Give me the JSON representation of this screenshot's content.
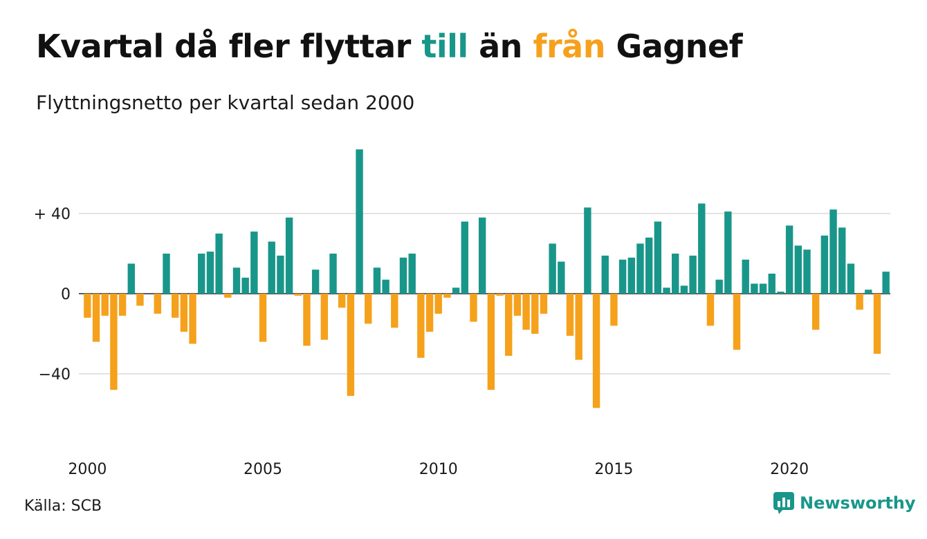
{
  "title": {
    "part1": "Kvartal då fler flyttar",
    "till": "till",
    "mid": "än",
    "fran": "från",
    "end": "Gagnef"
  },
  "subtitle": "Flyttningsnetto per kvartal sedan 2000",
  "source": "Källa: SCB",
  "brand": {
    "name": "Newsworthy",
    "color": "#19968a"
  },
  "colors": {
    "positive": "#19968a",
    "negative": "#f5a11c",
    "grid": "#e3e3e3"
  },
  "chart_data": {
    "type": "bar",
    "title": "Kvartal då fler flyttar till än från Gagnef",
    "subtitle": "Flyttningsnetto per kvartal sedan 2000",
    "ylabel": "",
    "xlabel": "",
    "ylim": [
      -66,
      72
    ],
    "y_ticks": [
      {
        "value": 40,
        "label": "+ 40"
      },
      {
        "value": 0,
        "label": "0"
      },
      {
        "value": -40,
        "label": "−40"
      }
    ],
    "x_ticks": [
      {
        "quarter_index": 0,
        "label": "2000"
      },
      {
        "quarter_index": 20,
        "label": "2005"
      },
      {
        "quarter_index": 40,
        "label": "2010"
      },
      {
        "quarter_index": 60,
        "label": "2015"
      },
      {
        "quarter_index": 80,
        "label": "2020"
      }
    ],
    "grid": "horizontal",
    "legend": "none",
    "start": "2000 Q1",
    "values": [
      -12,
      -24,
      -11,
      -48,
      -11,
      15,
      -6,
      0,
      -10,
      20,
      -12,
      -19,
      -25,
      20,
      21,
      30,
      -2,
      13,
      8,
      31,
      -24,
      26,
      19,
      38,
      -1,
      -26,
      12,
      -23,
      20,
      -7,
      -51,
      72,
      -15,
      13,
      7,
      -17,
      18,
      20,
      -32,
      -19,
      -10,
      -2,
      3,
      36,
      -14,
      38,
      -48,
      -1,
      -31,
      -11,
      -18,
      -20,
      -10,
      25,
      16,
      -21,
      -33,
      43,
      -57,
      19,
      -16,
      17,
      18,
      25,
      28,
      36,
      3,
      20,
      4,
      19,
      45,
      -16,
      7,
      41,
      -28,
      17,
      5,
      5,
      10,
      1,
      34,
      24,
      22,
      -18,
      29,
      42,
      33,
      15,
      -8,
      2,
      -30,
      11
    ]
  }
}
